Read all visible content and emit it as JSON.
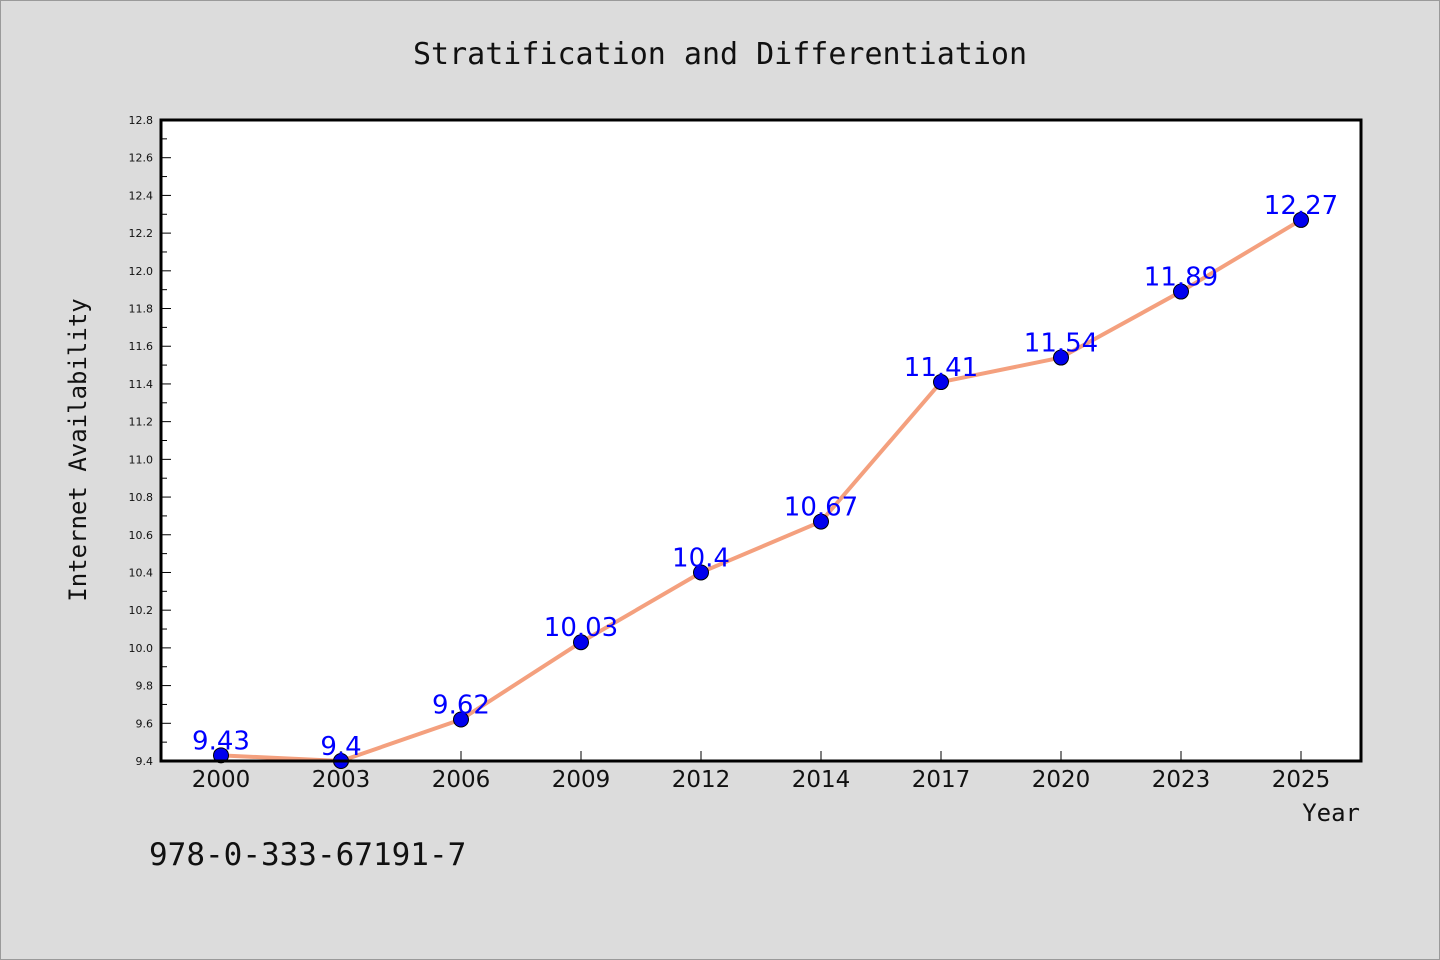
{
  "chart_data": {
    "type": "line",
    "title": "Stratification and Differentiation",
    "xlabel": "Year",
    "ylabel": "Internet Availability",
    "categories": [
      "2000",
      "2003",
      "2006",
      "2009",
      "2012",
      "2014",
      "2017",
      "2020",
      "2023",
      "2025"
    ],
    "values": [
      9.43,
      9.4,
      9.62,
      10.03,
      10.4,
      10.67,
      11.41,
      11.54,
      11.89,
      12.27
    ],
    "data_labels": [
      "9.43",
      "9.4",
      "9.62",
      "10.03",
      "10.4",
      "10.67",
      "11.41",
      "11.54",
      "11.89",
      "12.27"
    ],
    "ylim": [
      9.4,
      12.8
    ],
    "yticks": [
      "9.4",
      "9.6",
      "9.8",
      "10.0",
      "10.2",
      "10.4",
      "10.6",
      "10.8",
      "11.0",
      "11.2",
      "11.4",
      "11.6",
      "11.8",
      "12.0",
      "12.2",
      "12.4",
      "12.6",
      "12.8"
    ],
    "grid": false,
    "line_color": "#f4a07e",
    "marker_color": "#0000ee",
    "label_color": "#0000ff"
  },
  "footer": {
    "isbn": "978-0-333-67191-7"
  }
}
